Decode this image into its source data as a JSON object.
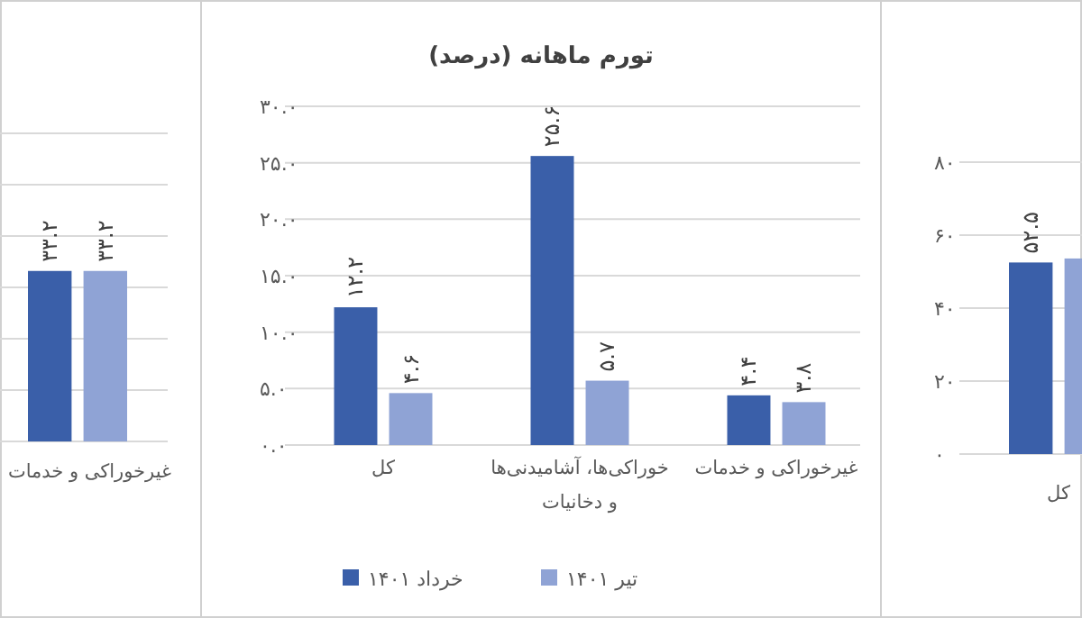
{
  "chart_data": [
    {
      "type": "bar",
      "categories": [
        "غیرخوراکی و خدمات"
      ],
      "ylim": [
        0,
        60
      ],
      "yticks": [
        {
          "value": 0,
          "label": null
        },
        {
          "value": 10,
          "label": null
        },
        {
          "value": 20,
          "label": null
        },
        {
          "value": 30,
          "label": null
        },
        {
          "value": 40,
          "label": null
        },
        {
          "value": 50,
          "label": null
        },
        {
          "value": 60,
          "label": null
        }
      ],
      "grid": "y",
      "tick_labels": "x",
      "series": [
        {
          "color": "#3a5fa9",
          "values": [
            33.2
          ],
          "value_labels": [
            "۳۳.۲"
          ]
        },
        {
          "color": "#8fa3d5",
          "values": [
            33.2
          ],
          "value_labels": [
            "۳۳.۲"
          ]
        }
      ]
    },
    {
      "type": "bar",
      "title": "تورم ماهانه (درصد)",
      "categories": [
        "کل",
        "خوراکی‌ها، آشامیدنی‌ها و دخانیات",
        "غیرخوراکی و خدمات"
      ],
      "ylim": [
        0,
        30
      ],
      "yticks": [
        {
          "value": 0,
          "label": "۰.۰"
        },
        {
          "value": 5,
          "label": "۵.۰"
        },
        {
          "value": 10,
          "label": "۱۰.۰"
        },
        {
          "value": 15,
          "label": "۱۵.۰"
        },
        {
          "value": 20,
          "label": "۲۰.۰"
        },
        {
          "value": 25,
          "label": "۲۵.۰"
        },
        {
          "value": 30,
          "label": "۳۰.۰"
        }
      ],
      "grid": "y",
      "legend": "bottom",
      "series": [
        {
          "name": "خرداد ۱۴۰۱",
          "color": "#3a5fa9",
          "values": [
            12.2,
            25.6,
            4.4
          ],
          "value_labels": [
            "۱۲.۲",
            "۲۵.۶",
            "۴.۴"
          ]
        },
        {
          "name": "تیر ۱۴۰۱",
          "color": "#8fa3d5",
          "values": [
            4.6,
            5.7,
            3.8
          ],
          "value_labels": [
            "۴.۶",
            "۵.۷",
            "۳.۸"
          ]
        }
      ]
    },
    {
      "type": "bar",
      "categories": [
        "کل"
      ],
      "ylim": [
        0,
        80
      ],
      "yticks": [
        {
          "value": 0,
          "label": "۰"
        },
        {
          "value": 20,
          "label": "۲۰"
        },
        {
          "value": 40,
          "label": "۴۰"
        },
        {
          "value": 60,
          "label": "۶۰"
        },
        {
          "value": 80,
          "label": "۸۰"
        }
      ],
      "grid": "y",
      "series": [
        {
          "color": "#3a5fa9",
          "values": [
            52.5
          ],
          "value_labels": [
            "۵۲.۵"
          ]
        },
        {
          "color": "#8fa3d5",
          "values": [
            53.6
          ],
          "value_labels": [
            null
          ]
        }
      ]
    }
  ]
}
